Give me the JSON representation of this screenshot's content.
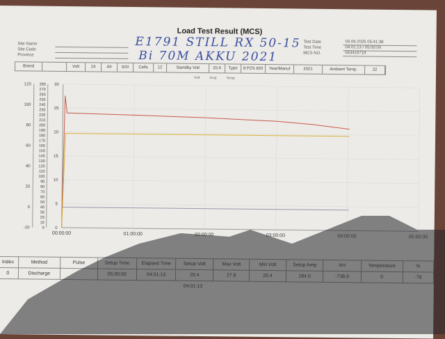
{
  "title": "Load Test Result (MCS)",
  "site": {
    "labels": [
      "Site Name",
      "Site Code",
      "Province"
    ],
    "handwritten_line1": "E1791 STILL RX 50-15",
    "handwritten_line2": "Bi 70M AKKU 2021"
  },
  "test_info": [
    {
      "label": "Test Date",
      "value": "03.09.2025 05:41:38"
    },
    {
      "label": "Test Time",
      "value": "04:01:13 / 05:00:00"
    },
    {
      "label": "MCS NO.",
      "value": "063419719"
    }
  ],
  "header_row": [
    "Brand",
    "",
    "Volt",
    "24",
    "Ah",
    "920",
    "Cells",
    "12",
    "Standby Volt",
    "20.4",
    "Type",
    "8 PZS 920",
    "Year/Manuf",
    "2021",
    "Ambient Temp.",
    "22"
  ],
  "chart_data": {
    "type": "line",
    "legend": [
      "Volt",
      "Amp",
      "Temp"
    ],
    "legend_placement": "top",
    "x_ticks": [
      "00:00:00",
      "01:00:00",
      "02:00:00",
      "03:00:00",
      "04:00:00",
      "05:00:00"
    ],
    "xlim_hours": [
      0,
      5
    ],
    "axes": {
      "volt": {
        "range": [
          0,
          30
        ],
        "ticks": [
          "0",
          "5",
          "10",
          "15",
          "20",
          "25",
          "30"
        ]
      },
      "amp": {
        "range": [
          0,
          280
        ],
        "ticks": [
          "0",
          "10",
          "20",
          "30",
          "40",
          "50",
          "60",
          "70",
          "80",
          "90",
          "100",
          "110",
          "120",
          "130",
          "140",
          "150",
          "160",
          "170",
          "180",
          "190",
          "200",
          "210",
          "220",
          "230",
          "240",
          "250",
          "260",
          "270",
          "280"
        ]
      },
      "temp": {
        "range": [
          -20,
          120
        ],
        "ticks": [
          "-20",
          "0",
          "20",
          "40",
          "60",
          "80",
          "100",
          "120"
        ]
      }
    },
    "grid": true,
    "series": [
      {
        "name": "Volt",
        "axis": "volt",
        "color": "#c8584a",
        "points": [
          [
            0,
            0
          ],
          [
            0.03,
            27.6
          ],
          [
            0.06,
            24.0
          ],
          [
            1,
            23.7
          ],
          [
            2,
            23.3
          ],
          [
            3,
            22.7
          ],
          [
            3.5,
            22.1
          ],
          [
            4.02,
            21.2
          ]
        ]
      },
      {
        "name": "Amp",
        "axis": "amp",
        "color": "#d9b13a",
        "points": [
          [
            0,
            0
          ],
          [
            0.04,
            184
          ],
          [
            4.02,
            184
          ]
        ]
      },
      {
        "name": "Temp",
        "axis": "temp",
        "color": "#9a97a8",
        "points": [
          [
            0,
            0
          ],
          [
            4.02,
            0
          ]
        ]
      }
    ]
  },
  "results": {
    "headers": [
      "Index",
      "Method",
      "Pulse",
      "Setup Time",
      "Elapsed Time",
      "Setup Volt",
      "Max Volt",
      "Min Volt",
      "Setup Amp",
      "AH",
      "Temperature",
      "%"
    ],
    "row": [
      "0",
      "Discharge",
      "",
      "05:00:00",
      "04:01:13",
      "20.4",
      "27.6",
      "20.4",
      "184.0",
      "-738.9",
      "0",
      "-79"
    ],
    "footer": "04:01:13"
  }
}
